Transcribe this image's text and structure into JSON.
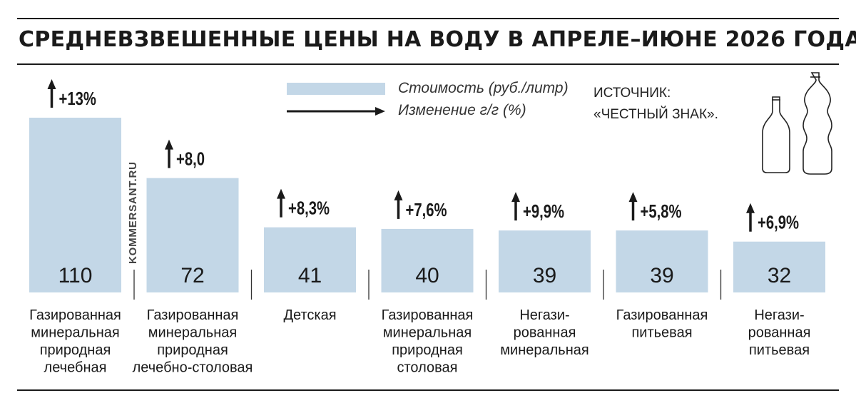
{
  "title": "СРЕДНЕВЗВЕШЕННЫЕ ЦЕНЫ НА ВОДУ В АПРЕЛЕ–ИЮНЕ 2026 ГОДА",
  "legend": {
    "bar_label": "Стоимость (руб./литр)",
    "arrow_label": "Изменение г/г (%)"
  },
  "source": {
    "line1": "ИСТОЧНИК:",
    "line2": "«ЧЕСТНЫЙ ЗНАК»."
  },
  "watermark": "KOMMERSANT.RU",
  "colors": {
    "bar": "#c3d7e7",
    "text": "#1a1a1a"
  },
  "icons": [
    "glass-bottle-icon",
    "plastic-bottle-icon"
  ],
  "chart_data": {
    "type": "bar",
    "title": "СРЕДНЕВЗВЕШЕННЫЕ ЦЕНЫ НА ВОДУ В АПРЕЛЕ–ИЮНЕ 2026 ГОДА",
    "categories": [
      [
        "Газированная",
        "минеральная",
        "природная",
        "лечебная"
      ],
      [
        "Газированная",
        "минеральная",
        "природная",
        "лечебно-столовая"
      ],
      [
        "Детская"
      ],
      [
        "Газированная",
        "минеральная",
        "природная",
        "столовая"
      ],
      [
        "Негази-",
        "рованная",
        "минеральная"
      ],
      [
        "Газированная",
        "питьевая"
      ],
      [
        "Негази-",
        "рованная",
        "питьевая"
      ]
    ],
    "series": [
      {
        "name": "Стоимость (руб./литр)",
        "values": [
          110,
          72,
          41,
          40,
          39,
          39,
          32
        ]
      },
      {
        "name": "Изменение г/г (%)",
        "labels": [
          "+13%",
          "+8,0",
          "+8,3%",
          "+7,6%",
          "+9,9%",
          "+5,8%",
          "+6,9%"
        ]
      }
    ],
    "ylim": [
      0,
      110
    ],
    "grid": false,
    "legend_position": "top"
  }
}
